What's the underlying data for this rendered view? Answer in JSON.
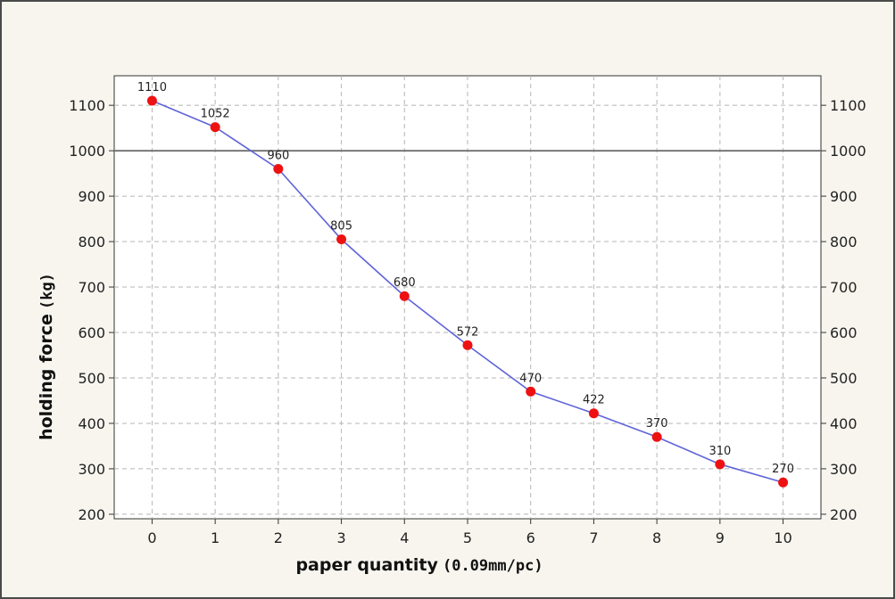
{
  "chart_data": {
    "type": "line",
    "x": [
      0,
      1,
      2,
      3,
      4,
      5,
      6,
      7,
      8,
      9,
      10
    ],
    "series": [
      {
        "values": [
          1110,
          1052,
          960,
          805,
          680,
          572,
          470,
          422,
          370,
          310,
          270
        ]
      }
    ],
    "data_labels": [
      "1110",
      "1052",
      "960",
      "805",
      "680",
      "572",
      "470",
      "422",
      "370",
      "310",
      "270"
    ],
    "xlabel": "paper quantity",
    "xlabel_unit": "(0.09mm/pc)",
    "ylabel": "holding force",
    "ylabel_unit": "(kg)",
    "xlim": [
      -0.6,
      10.6
    ],
    "ylim": [
      190,
      1165
    ],
    "xticks": [
      0,
      1,
      2,
      3,
      4,
      5,
      6,
      7,
      8,
      9,
      10
    ],
    "yticks": [
      200,
      300,
      400,
      500,
      600,
      700,
      800,
      900,
      1000,
      1100
    ],
    "reference_line": 1000,
    "right_axis": true,
    "grid": true,
    "line_color": "#5f63d8",
    "marker_color": "#ee1111",
    "reference_line_color": "#777777",
    "plot_background": "#ffffff",
    "frame_background": "#f7f5ee"
  }
}
